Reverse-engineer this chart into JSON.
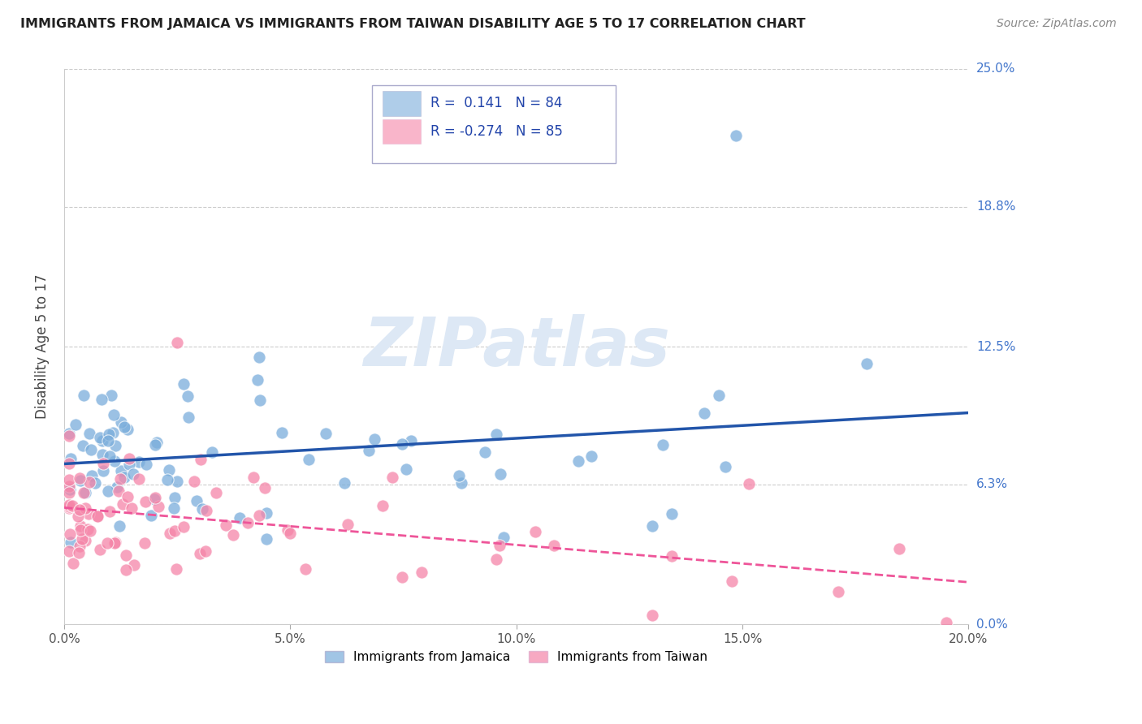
{
  "title": "IMMIGRANTS FROM JAMAICA VS IMMIGRANTS FROM TAIWAN DISABILITY AGE 5 TO 17 CORRELATION CHART",
  "source": "Source: ZipAtlas.com",
  "xlim": [
    0.0,
    0.2
  ],
  "ylim": [
    0.0,
    0.25
  ],
  "jamaica_color": "#7aaddb",
  "taiwan_color": "#f585a8",
  "jamaica_R": 0.141,
  "jamaica_N": 84,
  "taiwan_R": -0.274,
  "taiwan_N": 85,
  "trend_jamaica_color": "#2255aa",
  "trend_taiwan_color": "#ee5599",
  "watermark_text": "ZIPatlas",
  "watermark_color": "#dde8f5",
  "legend_label_jamaica": "Immigrants from Jamaica",
  "legend_label_taiwan": "Immigrants from Taiwan",
  "ylabel_labels": [
    "0.0%",
    "6.3%",
    "12.5%",
    "18.8%",
    "25.0%"
  ],
  "ylabel_vals": [
    0.0,
    0.063,
    0.125,
    0.188,
    0.25
  ],
  "xtick_vals": [
    0.0,
    0.05,
    0.1,
    0.15,
    0.2
  ],
  "xtick_labels": [
    "0.0%",
    "5.0%",
    "10.0%",
    "15.0%",
    "20.0%"
  ]
}
